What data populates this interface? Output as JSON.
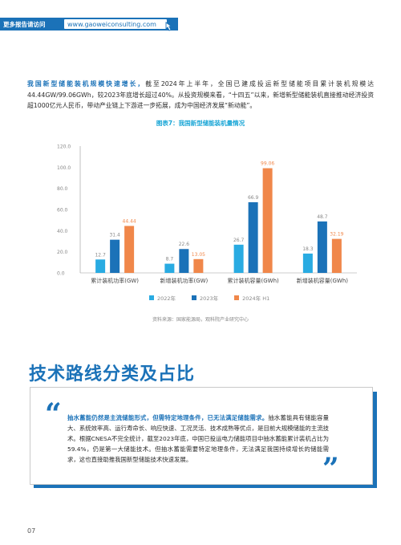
{
  "banner": {
    "left_text": "更多报告请访问",
    "url": "www.gaoweiconsulting.com"
  },
  "intro": {
    "highlight": "我国新型储能装机规模快速增长，",
    "body": "截至2024年上半年，全国已建成投运新型储能项目累计装机规模达44.44GW/99.06GWh，较2023年底增长超过40%。从投资规模来看，“十四五”以来，新增新型储能装机直接推动经济投资超1000亿元人民币，带动产业链上下游进一步拓展，成为中国经济发展“新动能”。"
  },
  "chart_title": "图表7：我国新型储能装机量情况",
  "chart_data": {
    "type": "bar",
    "categories": [
      "累计装机功率(GW)",
      "新增装机功率(GW)",
      "累计装机容量(GWh)",
      "新增装机容量(GWh)"
    ],
    "series": [
      {
        "name": "2022年",
        "values": [
          12.7,
          8.7,
          26.7,
          18.3
        ]
      },
      {
        "name": "2023年",
        "values": [
          31.4,
          22.6,
          66.9,
          48.7
        ]
      },
      {
        "name": "2024年 H1",
        "values": [
          44.44,
          13.05,
          99.06,
          32.19
        ]
      }
    ],
    "ylim": [
      0,
      120
    ],
    "yticks": [
      "0.0",
      "20.0",
      "40.0",
      "60.0",
      "80.0",
      "100.0",
      "120.0"
    ],
    "value_labels": [
      [
        "12.7",
        "8.7",
        "26.7",
        "18.3"
      ],
      [
        "31.4",
        "22.6",
        "66.9",
        "48.7"
      ],
      [
        "44.44",
        "13.05",
        "99.06",
        "32.19"
      ]
    ],
    "colors": [
      "#29abe2",
      "#1b72b8",
      "#f0874a"
    ],
    "label_colors": [
      "#888888",
      "#888888",
      "#f0874a"
    ],
    "legend_position": "bottom",
    "grid": false
  },
  "source": "资料来源：国家能源局，观科院产业研究中心",
  "section_title": "技术路线分类及占比",
  "quote": {
    "open_mark": "“",
    "close_mark": "”",
    "highlight": "抽水蓄能仍然是主流储能形式，但需特定地理条件，已无法满足储能需求。",
    "body": "抽水蓄能具有储能容量大、系统效率高、运行寿命长、响应快速、工况灵活、技术成熟等优点，是目前大规模储能的主流技术。根据CNESA不完全统计，截至2023年底，中国已投运电力储能项目中抽水蓄能累计装机占比为59.4%，仍是第一大储能技术。但抽水蓄能需要特定地理条件，无法满足我国持续增长的储能需求，这也直接助推我国新型储能技术快速发展。"
  },
  "page_number": "07",
  "icons": {
    "cursor": "pointer-cursor-icon"
  }
}
